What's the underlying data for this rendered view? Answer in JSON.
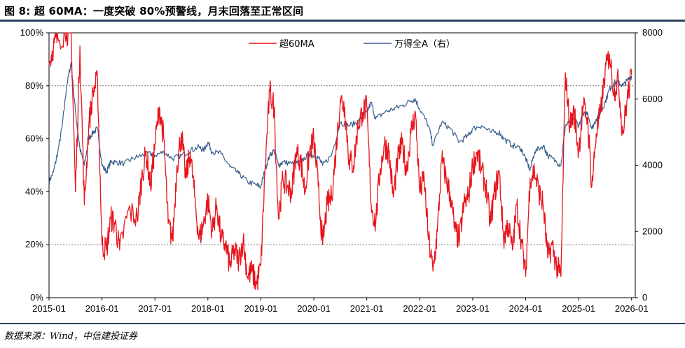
{
  "header": {
    "title": "图 8: 超 60MA：一度突破 80%预警线，月末回落至正常区间"
  },
  "footer": {
    "source": "数据来源：Wind，中信建投证券"
  },
  "chart_data": {
    "type": "line",
    "title": "图 8: 超 60MA：一度突破 80%预警线，月末回落至正常区间",
    "x_ticks": [
      "2015-01",
      "2016-01",
      "2017-01",
      "2018-01",
      "2019-01",
      "2020-01",
      "2021-01",
      "2022-01",
      "2023-01",
      "2024-01",
      "2025-01",
      "2026-01"
    ],
    "y_left": {
      "range": [
        0,
        100
      ],
      "ticks": [
        "0%",
        "20%",
        "40%",
        "60%",
        "80%",
        "100%"
      ],
      "unit": "%"
    },
    "y_right": {
      "range": [
        0,
        8000
      ],
      "ticks": [
        "0",
        "2000",
        "4000",
        "6000",
        "8000"
      ]
    },
    "reference_lines": [
      {
        "axis": "left",
        "value": 80
      },
      {
        "axis": "left",
        "value": 20
      }
    ],
    "legend": {
      "placement": "top-center"
    },
    "series": [
      {
        "name": "超60MA",
        "axis": "left",
        "color": "#e8141c",
        "points": [
          [
            "2015-01",
            88
          ],
          [
            "2015-02",
            95
          ],
          [
            "2015-03",
            98
          ],
          [
            "2015-05",
            100
          ],
          [
            "2015-06",
            100
          ],
          [
            "2015-07",
            40
          ],
          [
            "2015-08",
            95
          ],
          [
            "2015-09",
            35
          ],
          [
            "2015-10",
            65
          ],
          [
            "2015-11",
            78
          ],
          [
            "2015-12",
            82
          ],
          [
            "2016-01",
            20
          ],
          [
            "2016-02",
            18
          ],
          [
            "2016-03",
            30
          ],
          [
            "2016-04",
            28
          ],
          [
            "2016-05",
            18
          ],
          [
            "2016-07",
            33
          ],
          [
            "2016-09",
            30
          ],
          [
            "2016-10",
            45
          ],
          [
            "2016-11",
            55
          ],
          [
            "2016-12",
            42
          ],
          [
            "2017-01",
            58
          ],
          [
            "2017-02",
            72
          ],
          [
            "2017-03",
            60
          ],
          [
            "2017-04",
            28
          ],
          [
            "2017-05",
            22
          ],
          [
            "2017-06",
            50
          ],
          [
            "2017-07",
            62
          ],
          [
            "2017-08",
            45
          ],
          [
            "2017-09",
            55
          ],
          [
            "2017-10",
            38
          ],
          [
            "2017-11",
            22
          ],
          [
            "2017-12",
            28
          ],
          [
            "2018-01",
            37
          ],
          [
            "2018-02",
            25
          ],
          [
            "2018-03",
            35
          ],
          [
            "2018-04",
            22
          ],
          [
            "2018-05",
            20
          ],
          [
            "2018-06",
            12
          ],
          [
            "2018-07",
            18
          ],
          [
            "2018-08",
            14
          ],
          [
            "2018-09",
            22
          ],
          [
            "2018-10",
            8
          ],
          [
            "2018-11",
            10
          ],
          [
            "2018-12",
            5
          ],
          [
            "2019-01",
            12
          ],
          [
            "2019-02",
            50
          ],
          [
            "2019-03",
            78
          ],
          [
            "2019-04",
            72
          ],
          [
            "2019-05",
            30
          ],
          [
            "2019-06",
            45
          ],
          [
            "2019-07",
            42
          ],
          [
            "2019-08",
            40
          ],
          [
            "2019-09",
            55
          ],
          [
            "2019-10",
            52
          ],
          [
            "2019-11",
            40
          ],
          [
            "2019-12",
            55
          ],
          [
            "2020-01",
            60
          ],
          [
            "2020-02",
            42
          ],
          [
            "2020-03",
            20
          ],
          [
            "2020-04",
            35
          ],
          [
            "2020-05",
            38
          ],
          [
            "2020-06",
            55
          ],
          [
            "2020-07",
            75
          ],
          [
            "2020-08",
            72
          ],
          [
            "2020-09",
            52
          ],
          [
            "2020-10",
            50
          ],
          [
            "2020-11",
            65
          ],
          [
            "2020-12",
            70
          ],
          [
            "2021-01",
            72
          ],
          [
            "2021-02",
            35
          ],
          [
            "2021-03",
            28
          ],
          [
            "2021-04",
            48
          ],
          [
            "2021-05",
            58
          ],
          [
            "2021-06",
            55
          ],
          [
            "2021-07",
            38
          ],
          [
            "2021-08",
            52
          ],
          [
            "2021-09",
            58
          ],
          [
            "2021-10",
            48
          ],
          [
            "2021-11",
            62
          ],
          [
            "2021-12",
            70
          ],
          [
            "2022-01",
            40
          ],
          [
            "2022-02",
            45
          ],
          [
            "2022-03",
            22
          ],
          [
            "2022-04",
            10
          ],
          [
            "2022-05",
            25
          ],
          [
            "2022-06",
            52
          ],
          [
            "2022-07",
            45
          ],
          [
            "2022-08",
            38
          ],
          [
            "2022-09",
            25
          ],
          [
            "2022-10",
            22
          ],
          [
            "2022-11",
            35
          ],
          [
            "2022-12",
            38
          ],
          [
            "2023-01",
            50
          ],
          [
            "2023-02",
            55
          ],
          [
            "2023-03",
            48
          ],
          [
            "2023-04",
            42
          ],
          [
            "2023-05",
            28
          ],
          [
            "2023-06",
            40
          ],
          [
            "2023-07",
            48
          ],
          [
            "2023-08",
            22
          ],
          [
            "2023-09",
            28
          ],
          [
            "2023-10",
            18
          ],
          [
            "2023-11",
            35
          ],
          [
            "2023-12",
            22
          ],
          [
            "2024-01",
            8
          ],
          [
            "2024-02",
            45
          ],
          [
            "2024-03",
            48
          ],
          [
            "2024-04",
            40
          ],
          [
            "2024-05",
            35
          ],
          [
            "2024-06",
            15
          ],
          [
            "2024-07",
            20
          ],
          [
            "2024-08",
            12
          ],
          [
            "2024-09",
            8
          ],
          [
            "2024-10",
            85
          ],
          [
            "2024-11",
            65
          ],
          [
            "2024-12",
            70
          ],
          [
            "2025-01",
            55
          ],
          [
            "2025-02",
            72
          ],
          [
            "2025-03",
            68
          ],
          [
            "2025-04",
            42
          ],
          [
            "2025-05",
            62
          ],
          [
            "2025-06",
            70
          ],
          [
            "2025-07",
            85
          ],
          [
            "2025-08",
            92
          ],
          [
            "2025-09",
            78
          ],
          [
            "2025-10",
            82
          ],
          [
            "2025-11",
            62
          ],
          [
            "2025-12",
            75
          ],
          [
            "2026-01",
            84
          ]
        ]
      },
      {
        "name": "万得全A（右）",
        "axis": "right",
        "color": "#3b5f8f",
        "points": [
          [
            "2015-01",
            3500
          ],
          [
            "2015-02",
            3800
          ],
          [
            "2015-03",
            4400
          ],
          [
            "2015-04",
            5200
          ],
          [
            "2015-05",
            6400
          ],
          [
            "2015-06",
            7100
          ],
          [
            "2015-07",
            5600
          ],
          [
            "2015-08",
            4500
          ],
          [
            "2015-09",
            4000
          ],
          [
            "2015-10",
            4800
          ],
          [
            "2015-11",
            5000
          ],
          [
            "2015-12",
            5100
          ],
          [
            "2016-01",
            4000
          ],
          [
            "2016-02",
            3800
          ],
          [
            "2016-03",
            4100
          ],
          [
            "2016-04",
            4100
          ],
          [
            "2016-06",
            4050
          ],
          [
            "2016-08",
            4200
          ],
          [
            "2016-10",
            4300
          ],
          [
            "2016-12",
            4350
          ],
          [
            "2017-01",
            4300
          ],
          [
            "2017-03",
            4400
          ],
          [
            "2017-05",
            4200
          ],
          [
            "2017-07",
            4300
          ],
          [
            "2017-09",
            4450
          ],
          [
            "2017-11",
            4550
          ],
          [
            "2017-12",
            4450
          ],
          [
            "2018-01",
            4700
          ],
          [
            "2018-02",
            4400
          ],
          [
            "2018-04",
            4350
          ],
          [
            "2018-06",
            3950
          ],
          [
            "2018-08",
            3750
          ],
          [
            "2018-10",
            3500
          ],
          [
            "2018-12",
            3400
          ],
          [
            "2019-01",
            3350
          ],
          [
            "2019-02",
            3900
          ],
          [
            "2019-03",
            4300
          ],
          [
            "2019-04",
            4450
          ],
          [
            "2019-05",
            4000
          ],
          [
            "2019-06",
            4100
          ],
          [
            "2019-08",
            4050
          ],
          [
            "2019-10",
            4100
          ],
          [
            "2019-12",
            4350
          ],
          [
            "2020-01",
            4300
          ],
          [
            "2020-02",
            4250
          ],
          [
            "2020-03",
            4000
          ],
          [
            "2020-05",
            4300
          ],
          [
            "2020-07",
            5300
          ],
          [
            "2020-09",
            5200
          ],
          [
            "2020-11",
            5300
          ],
          [
            "2020-12",
            5500
          ],
          [
            "2021-01",
            5600
          ],
          [
            "2021-02",
            5900
          ],
          [
            "2021-03",
            5400
          ],
          [
            "2021-05",
            5600
          ],
          [
            "2021-07",
            5700
          ],
          [
            "2021-09",
            5800
          ],
          [
            "2021-11",
            5950
          ],
          [
            "2021-12",
            6000
          ],
          [
            "2022-01",
            5700
          ],
          [
            "2022-03",
            5200
          ],
          [
            "2022-04",
            4600
          ],
          [
            "2022-06",
            5300
          ],
          [
            "2022-08",
            5100
          ],
          [
            "2022-10",
            4700
          ],
          [
            "2022-12",
            4900
          ],
          [
            "2023-01",
            5100
          ],
          [
            "2023-03",
            5200
          ],
          [
            "2023-05",
            5000
          ],
          [
            "2023-07",
            5000
          ],
          [
            "2023-08",
            4800
          ],
          [
            "2023-10",
            4600
          ],
          [
            "2023-12",
            4500
          ],
          [
            "2024-01",
            4200
          ],
          [
            "2024-02",
            3850
          ],
          [
            "2024-03",
            4400
          ],
          [
            "2024-05",
            4600
          ],
          [
            "2024-06",
            4300
          ],
          [
            "2024-08",
            4100
          ],
          [
            "2024-09",
            4000
          ],
          [
            "2024-10",
            5200
          ],
          [
            "2024-11",
            5300
          ],
          [
            "2024-12",
            5400
          ],
          [
            "2025-01",
            5200
          ],
          [
            "2025-02",
            5500
          ],
          [
            "2025-03",
            5600
          ],
          [
            "2025-04",
            5100
          ],
          [
            "2025-05",
            5400
          ],
          [
            "2025-06",
            5600
          ],
          [
            "2025-07",
            5900
          ],
          [
            "2025-08",
            6300
          ],
          [
            "2025-09",
            6500
          ],
          [
            "2025-10",
            6500
          ],
          [
            "2025-11",
            6400
          ],
          [
            "2025-12",
            6550
          ],
          [
            "2026-01",
            6700
          ]
        ]
      }
    ]
  }
}
